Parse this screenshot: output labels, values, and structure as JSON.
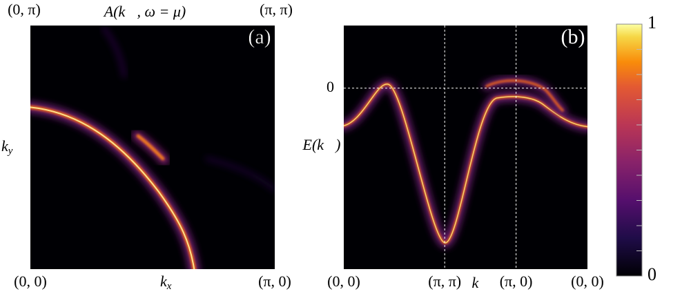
{
  "chart_data": [
    {
      "type": "heatmap",
      "title": "A(k⃗, ω = μ)",
      "panel_label": "(a)",
      "xlabel": {
        "base": "k",
        "sub": "x"
      },
      "ylabel": {
        "base": "k",
        "sub": "y"
      },
      "xlim": [
        0,
        3.1416
      ],
      "ylim": [
        0,
        3.1416
      ],
      "xticks": [
        {
          "value": 0,
          "label": "(0, 0)"
        },
        {
          "value": 3.1416,
          "label": "(π, 0)"
        }
      ],
      "top_corner_labels": [
        "(0, π)",
        "(π, π)"
      ]
    },
    {
      "type": "heatmap",
      "panel_label": "(b)",
      "xlabel": "k⃗",
      "ylabel": "E(k⃗)",
      "xlim": [
        0,
        3.414
      ],
      "ylim": [
        -2.6,
        0.9
      ],
      "xticks": [
        {
          "value": 0,
          "label": "(0, 0)"
        },
        {
          "value": 1.414,
          "label": "(π, π)"
        },
        {
          "value": 2.414,
          "label": "(π, 0)"
        },
        {
          "value": 3.414,
          "label": "(0, 0)"
        }
      ],
      "yticks": [
        0
      ],
      "grid": true
    },
    {
      "type": "colorbar",
      "ylim": [
        0,
        1
      ],
      "yticks": [
        0,
        1
      ],
      "colormap": "inferno"
    }
  ]
}
